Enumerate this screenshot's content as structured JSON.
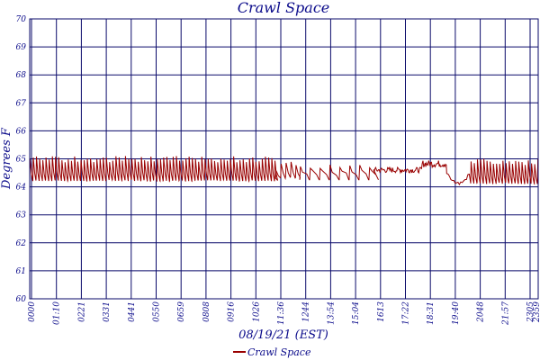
{
  "chart_data": {
    "type": "line",
    "title": "Crawl Space",
    "xlabel": "08/19/21 (EST)",
    "ylabel": "Degrees F",
    "ylim": [
      60,
      70
    ],
    "yticks": [
      60,
      61,
      62,
      63,
      64,
      65,
      66,
      67,
      68,
      69,
      70
    ],
    "xticks": [
      "0000",
      "01:10",
      "0221",
      "0331",
      "0441",
      "0550",
      "0659",
      "0808",
      "0916",
      "1026",
      "11:36",
      "1244",
      "13:54",
      "15:04",
      "1613",
      "17:22",
      "18:31",
      "19:40",
      "2048",
      "21:57",
      "2305",
      "2359"
    ],
    "grid": true,
    "legend_position": "bottom-center",
    "series": [
      {
        "name": "Crawl Space",
        "color": "#990000",
        "segments": [
          {
            "from": "00:00",
            "to": "11:36",
            "pattern": "cycling",
            "low": 64.2,
            "high": 65.1
          },
          {
            "from": "11:36",
            "to": "12:44",
            "pattern": "damped",
            "low": 64.3,
            "high": 64.9
          },
          {
            "from": "12:44",
            "to": "16:13",
            "pattern": "slow-cycle",
            "low": 64.2,
            "high": 64.8
          },
          {
            "from": "16:13",
            "to": "18:31",
            "pattern": "flat",
            "low": 64.5,
            "high": 64.7
          },
          {
            "from": "18:31",
            "to": "19:40",
            "pattern": "flat",
            "low": 64.7,
            "high": 64.95
          },
          {
            "from": "19:40",
            "to": "20:48",
            "pattern": "dip",
            "low": 64.1,
            "high": 64.6
          },
          {
            "from": "20:48",
            "to": "23:59",
            "pattern": "cycling",
            "low": 64.1,
            "high": 65.0
          }
        ]
      }
    ]
  }
}
